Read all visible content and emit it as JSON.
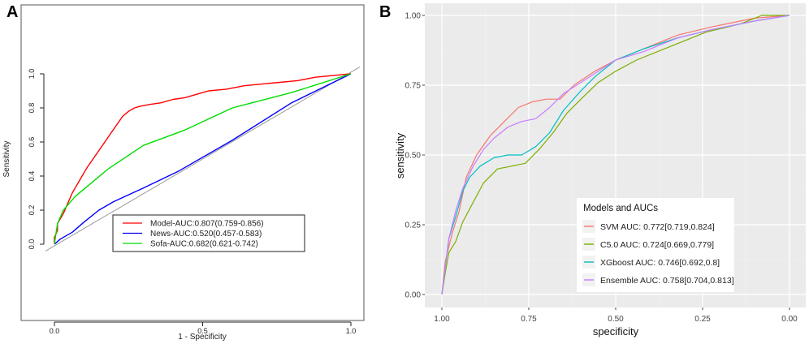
{
  "chart_data": [
    {
      "panel": "A",
      "type": "line",
      "xlabel": "1 - Specificity",
      "ylabel": "Sensitivity",
      "x_ticks": [
        "0.0",
        "0.5",
        "1.0"
      ],
      "y_ticks": [
        "0.0",
        "0.2",
        "0.4",
        "0.6",
        "0.8",
        "1.0"
      ],
      "xlim": [
        0,
        1
      ],
      "ylim": [
        0,
        1
      ],
      "reference_line": [
        [
          -0.03,
          -0.04
        ],
        [
          1.03,
          1.04
        ]
      ],
      "legend_position": "bottom-right",
      "series": [
        {
          "name": "Model-AUC:0.807(0.759-0.856)",
          "color": "#ff0000",
          "points": [
            [
              0,
              0
            ],
            [
              0,
              0.04
            ],
            [
              0.01,
              0.08
            ],
            [
              0.01,
              0.12
            ],
            [
              0.02,
              0.15
            ],
            [
              0.03,
              0.18
            ],
            [
              0.04,
              0.22
            ],
            [
              0.05,
              0.26
            ],
            [
              0.06,
              0.3
            ],
            [
              0.07,
              0.33
            ],
            [
              0.08,
              0.36
            ],
            [
              0.09,
              0.39
            ],
            [
              0.1,
              0.42
            ],
            [
              0.11,
              0.45
            ],
            [
              0.13,
              0.5
            ],
            [
              0.15,
              0.55
            ],
            [
              0.17,
              0.6
            ],
            [
              0.19,
              0.65
            ],
            [
              0.21,
              0.7
            ],
            [
              0.23,
              0.75
            ],
            [
              0.25,
              0.78
            ],
            [
              0.27,
              0.8
            ],
            [
              0.29,
              0.81
            ],
            [
              0.32,
              0.82
            ],
            [
              0.36,
              0.83
            ],
            [
              0.4,
              0.85
            ],
            [
              0.44,
              0.86
            ],
            [
              0.48,
              0.88
            ],
            [
              0.52,
              0.9
            ],
            [
              0.58,
              0.91
            ],
            [
              0.64,
              0.93
            ],
            [
              0.7,
              0.94
            ],
            [
              0.76,
              0.95
            ],
            [
              0.82,
              0.96
            ],
            [
              0.88,
              0.98
            ],
            [
              0.94,
              0.99
            ],
            [
              1,
              1
            ]
          ]
        },
        {
          "name": "News-AUC:0.520(0.457-0.583)",
          "color": "#0000ff",
          "points": [
            [
              0,
              0
            ],
            [
              0.02,
              0.03
            ],
            [
              0.06,
              0.07
            ],
            [
              0.1,
              0.13
            ],
            [
              0.15,
              0.2
            ],
            [
              0.2,
              0.25
            ],
            [
              0.3,
              0.33
            ],
            [
              0.42,
              0.43
            ],
            [
              0.6,
              0.61
            ],
            [
              0.8,
              0.83
            ],
            [
              1,
              1
            ]
          ]
        },
        {
          "name": "Sofa-AUC:0.682(0.621-0.742)",
          "color": "#00dd00",
          "points": [
            [
              0,
              0
            ],
            [
              0.01,
              0.12
            ],
            [
              0.03,
              0.2
            ],
            [
              0.07,
              0.28
            ],
            [
              0.18,
              0.44
            ],
            [
              0.3,
              0.58
            ],
            [
              0.44,
              0.67
            ],
            [
              0.6,
              0.8
            ],
            [
              0.8,
              0.89
            ],
            [
              1,
              1
            ]
          ]
        }
      ]
    },
    {
      "panel": "B",
      "type": "line",
      "xlabel": "specificity",
      "ylabel": "sensitivity",
      "x_ticks": [
        "1.00",
        "0.75",
        "0.50",
        "0.25",
        "0.00"
      ],
      "y_ticks": [
        "0.00",
        "0.25",
        "0.50",
        "0.75",
        "1.00"
      ],
      "xlim": [
        1,
        0
      ],
      "ylim": [
        0,
        1
      ],
      "grid": true,
      "legend_title": "Models and AUCs",
      "legend_position": "bottom-right",
      "series": [
        {
          "name": "SVM AUC: 0.772[0.719,0.824]",
          "color": "#f8766d",
          "points": [
            [
              1,
              0
            ],
            [
              0.99,
              0.12
            ],
            [
              0.97,
              0.22
            ],
            [
              0.95,
              0.3
            ],
            [
              0.93,
              0.42
            ],
            [
              0.9,
              0.5
            ],
            [
              0.86,
              0.57
            ],
            [
              0.82,
              0.62
            ],
            [
              0.78,
              0.67
            ],
            [
              0.74,
              0.69
            ],
            [
              0.7,
              0.7
            ],
            [
              0.66,
              0.7
            ],
            [
              0.62,
              0.75
            ],
            [
              0.56,
              0.8
            ],
            [
              0.5,
              0.84
            ],
            [
              0.42,
              0.88
            ],
            [
              0.32,
              0.93
            ],
            [
              0.22,
              0.96
            ],
            [
              0.1,
              0.99
            ],
            [
              0,
              1
            ]
          ]
        },
        {
          "name": "C5.0 AUC: 0.724[0.669,0.779]",
          "color": "#7cae00",
          "points": [
            [
              1,
              0
            ],
            [
              0.99,
              0.08
            ],
            [
              0.98,
              0.15
            ],
            [
              0.96,
              0.19
            ],
            [
              0.94,
              0.26
            ],
            [
              0.91,
              0.33
            ],
            [
              0.88,
              0.4
            ],
            [
              0.84,
              0.45
            ],
            [
              0.8,
              0.46
            ],
            [
              0.76,
              0.47
            ],
            [
              0.72,
              0.52
            ],
            [
              0.68,
              0.58
            ],
            [
              0.64,
              0.65
            ],
            [
              0.6,
              0.7
            ],
            [
              0.55,
              0.76
            ],
            [
              0.5,
              0.8
            ],
            [
              0.44,
              0.84
            ],
            [
              0.34,
              0.89
            ],
            [
              0.24,
              0.94
            ],
            [
              0.14,
              0.97
            ],
            [
              0.08,
              1
            ],
            [
              0,
              1
            ]
          ]
        },
        {
          "name": "XGboost AUC: 0.746[0.692,0.8]",
          "color": "#00bfc4",
          "points": [
            [
              1,
              0
            ],
            [
              0.99,
              0.1
            ],
            [
              0.98,
              0.2
            ],
            [
              0.96,
              0.28
            ],
            [
              0.94,
              0.37
            ],
            [
              0.92,
              0.42
            ],
            [
              0.89,
              0.46
            ],
            [
              0.85,
              0.49
            ],
            [
              0.81,
              0.5
            ],
            [
              0.77,
              0.5
            ],
            [
              0.73,
              0.53
            ],
            [
              0.69,
              0.58
            ],
            [
              0.65,
              0.66
            ],
            [
              0.6,
              0.73
            ],
            [
              0.56,
              0.78
            ],
            [
              0.5,
              0.84
            ],
            [
              0.42,
              0.88
            ],
            [
              0.32,
              0.92
            ],
            [
              0.22,
              0.95
            ],
            [
              0.1,
              0.98
            ],
            [
              0,
              1
            ]
          ]
        },
        {
          "name": "Ensemble AUC: 0.758[0.704,0.813]",
          "color": "#c77cff",
          "points": [
            [
              1,
              0
            ],
            [
              0.99,
              0.1
            ],
            [
              0.98,
              0.2
            ],
            [
              0.96,
              0.3
            ],
            [
              0.94,
              0.38
            ],
            [
              0.91,
              0.46
            ],
            [
              0.88,
              0.52
            ],
            [
              0.85,
              0.56
            ],
            [
              0.81,
              0.6
            ],
            [
              0.77,
              0.62
            ],
            [
              0.73,
              0.63
            ],
            [
              0.69,
              0.67
            ],
            [
              0.65,
              0.72
            ],
            [
              0.6,
              0.76
            ],
            [
              0.55,
              0.8
            ],
            [
              0.5,
              0.84
            ],
            [
              0.42,
              0.87
            ],
            [
              0.32,
              0.92
            ],
            [
              0.22,
              0.95
            ],
            [
              0.1,
              0.98
            ],
            [
              0,
              1
            ]
          ]
        }
      ]
    }
  ]
}
